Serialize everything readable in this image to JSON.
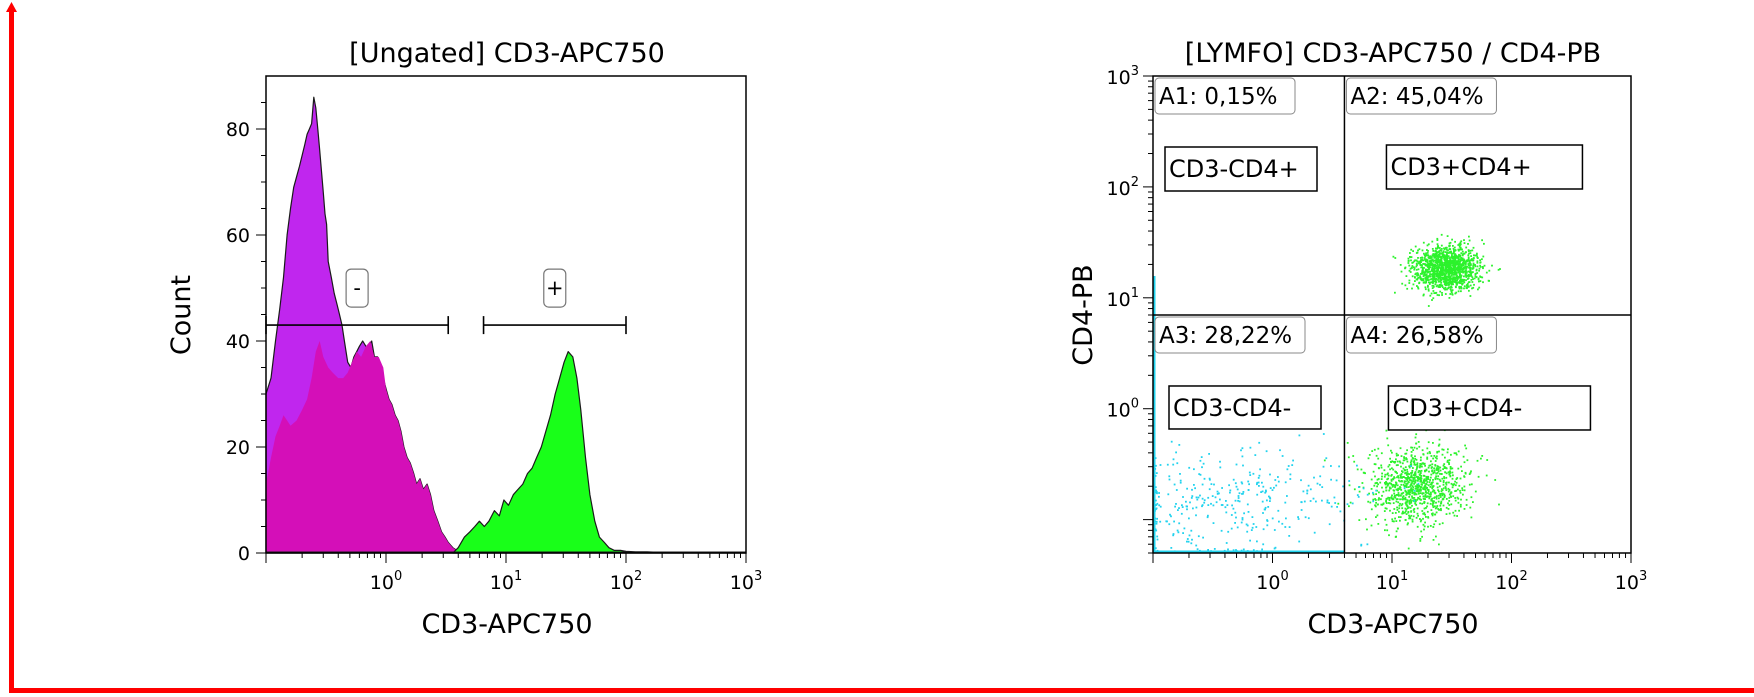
{
  "chart_data": [
    {
      "type": "area",
      "title": "[Ungated] CD3-APC750",
      "xlabel": "CD3-APC750",
      "ylabel": "Count",
      "x_scale": "log",
      "xlim": [
        0.1,
        1000
      ],
      "ylim": [
        0,
        90
      ],
      "x_ticks": [
        {
          "value": 1,
          "base": "10",
          "exp": "0"
        },
        {
          "value": 10,
          "base": "10",
          "exp": "1"
        },
        {
          "value": 100,
          "base": "10",
          "exp": "2"
        },
        {
          "value": 1000,
          "base": "10",
          "exp": "3"
        }
      ],
      "y_ticks": [
        {
          "value": 0,
          "label": "0"
        },
        {
          "value": 20,
          "label": "20"
        },
        {
          "value": 40,
          "label": "40"
        },
        {
          "value": 60,
          "label": "60"
        },
        {
          "value": 80,
          "label": "80"
        }
      ],
      "colors": {
        "purple": "#c026ee",
        "magenta": "#d40fb8",
        "green": "#19ff19",
        "outline": "#1a1a1a"
      },
      "series": [
        {
          "color": "#c026ee",
          "x": [
            0.1,
            0.11,
            0.12,
            0.13,
            0.14,
            0.15,
            0.16,
            0.17,
            0.18,
            0.19,
            0.2,
            0.21,
            0.22,
            0.23,
            0.24,
            0.25,
            0.26,
            0.27,
            0.28,
            0.29,
            0.3,
            0.31,
            0.32,
            0.33,
            0.35,
            0.37,
            0.39,
            0.41,
            0.43,
            0.45,
            0.48,
            0.51,
            0.54,
            0.57,
            0.6,
            0.64,
            0.68,
            0.72,
            0.76,
            0.8,
            0.85,
            0.9,
            0.95,
            1.0,
            1.06,
            1.12,
            1.19,
            1.26,
            1.33,
            1.41,
            1.5,
            1.59,
            1.7,
            1.8,
            1.92,
            2.05,
            2.2,
            2.35,
            2.5,
            2.7,
            2.9,
            3.1,
            3.3,
            3.6,
            3.9,
            4.2
          ],
          "y": [
            30,
            33,
            40,
            46,
            52,
            60,
            65,
            69,
            71,
            73,
            75,
            77,
            79,
            80,
            81,
            86,
            84,
            80,
            76,
            72,
            68,
            64,
            62,
            55,
            52,
            49,
            47,
            45,
            43,
            40,
            36,
            35,
            37,
            38,
            39,
            40,
            39,
            39,
            40,
            37,
            37,
            35,
            33,
            31,
            29,
            28,
            26,
            25,
            23,
            20,
            18,
            17,
            15,
            13,
            14,
            12,
            13,
            11,
            8,
            6,
            4,
            3,
            2,
            1,
            0.5,
            0
          ]
        },
        {
          "color": "#d40fb8",
          "x": [
            0.1,
            0.11,
            0.12,
            0.13,
            0.14,
            0.15,
            0.16,
            0.18,
            0.2,
            0.22,
            0.24,
            0.26,
            0.28,
            0.3,
            0.33,
            0.36,
            0.4,
            0.44,
            0.48,
            0.52,
            0.57,
            0.62,
            0.68,
            0.74,
            0.8,
            0.87,
            0.95,
            1.0,
            1.06,
            1.12,
            1.19,
            1.26,
            1.33,
            1.41,
            1.5,
            1.59,
            1.7,
            1.8,
            1.92,
            2.05,
            2.2,
            2.35,
            2.5,
            2.7,
            2.9,
            3.1,
            3.3,
            3.6,
            3.9,
            4.2
          ],
          "y": [
            13,
            18,
            22,
            24,
            26,
            25,
            24,
            25,
            27,
            29,
            33,
            38,
            40,
            37,
            35,
            34,
            33,
            33,
            34,
            36,
            38,
            37,
            39,
            40,
            37,
            37,
            35,
            31,
            29,
            28,
            26,
            25,
            23,
            20,
            18,
            17,
            15,
            13,
            14,
            12,
            13,
            11,
            8,
            6,
            4,
            3,
            2,
            1,
            0.5,
            0
          ]
        },
        {
          "color": "#19ff19",
          "x": [
            3.6,
            4.0,
            4.5,
            5.0,
            5.5,
            6.0,
            6.6,
            7.2,
            8.0,
            8.8,
            9.6,
            10.5,
            11.5,
            12.6,
            13.8,
            15.1,
            16.5,
            18.0,
            19.7,
            21.5,
            23.5,
            25.7,
            28.0,
            30.5,
            33.0,
            36.0,
            39.0,
            42.0,
            46.0,
            50.0,
            55.0,
            60.0,
            66.0,
            72.0,
            80.0,
            90.0,
            100.0,
            120.0,
            150.0,
            200.0,
            300.0,
            500.0,
            700.0,
            1000.0
          ],
          "y": [
            0,
            1,
            3,
            4,
            5,
            6,
            5,
            6,
            8,
            7,
            10,
            9,
            11,
            12,
            13,
            15,
            16,
            18,
            20,
            23,
            26,
            30,
            33,
            36,
            38,
            37,
            33,
            27,
            18,
            11,
            6,
            3,
            2,
            1,
            0.5,
            0.5,
            0.3,
            0.2,
            0.2,
            0.1,
            0.1,
            0.1,
            0.1,
            0
          ]
        }
      ],
      "gates": [
        {
          "label": "-",
          "x_range": [
            0.1,
            3.3
          ],
          "y": 43
        },
        {
          "label": "+",
          "x_range": [
            6.5,
            100
          ],
          "y": 43
        }
      ]
    },
    {
      "type": "scatter",
      "title": "[LYMFO] CD3-APC750 / CD4-PB",
      "xlabel": "CD3-APC750",
      "ylabel": "CD4-PB",
      "x_scale": "log",
      "y_scale": "log",
      "xlim": [
        0.1,
        1000
      ],
      "ylim": [
        0.05,
        1000
      ],
      "x_ticks": [
        {
          "value": 1,
          "base": "10",
          "exp": "0"
        },
        {
          "value": 10,
          "base": "10",
          "exp": "1"
        },
        {
          "value": 100,
          "base": "10",
          "exp": "2"
        },
        {
          "value": 1000,
          "base": "10",
          "exp": "3"
        }
      ],
      "y_ticks": [
        {
          "value": 1,
          "base": "10",
          "exp": "0"
        },
        {
          "value": 10,
          "base": "10",
          "exp": "1"
        },
        {
          "value": 100,
          "base": "10",
          "exp": "2"
        },
        {
          "value": 1000,
          "base": "10",
          "exp": "3"
        }
      ],
      "quadrant_split": {
        "x": 4.0,
        "y": 7.0
      },
      "colors": {
        "cyan": "#22d3ee",
        "green": "#2cf22c"
      },
      "quadrants": [
        {
          "id": "A1",
          "stat": "A1: 0,15%",
          "name": "CD3-CD4+"
        },
        {
          "id": "A2",
          "stat": "A2: 45,04%",
          "name": "CD3+CD4+"
        },
        {
          "id": "A3",
          "stat": "A3: 28,22%",
          "name": "CD3-CD4-"
        },
        {
          "id": "A4",
          "stat": "A4: 26,58%",
          "name": "CD3+CD4-"
        }
      ],
      "clusters": [
        {
          "population": "CD3+CD4+",
          "color": "#2cf22c",
          "center_x": 28,
          "center_y": 19,
          "spread_x_log": 0.14,
          "spread_y_log": 0.1,
          "count": 1300
        },
        {
          "population": "CD3+CD4-",
          "color": "#2cf22c",
          "center_x": 16,
          "center_y": 0.2,
          "spread_x_log": 0.2,
          "spread_y_log": 0.18,
          "count": 1000
        },
        {
          "population": "CD3-CD4-",
          "color": "#22d3ee",
          "center_x": 0.5,
          "center_y": 0.15,
          "spread_x_log": 0.55,
          "spread_y_log": 0.25,
          "count": 350
        }
      ]
    }
  ]
}
